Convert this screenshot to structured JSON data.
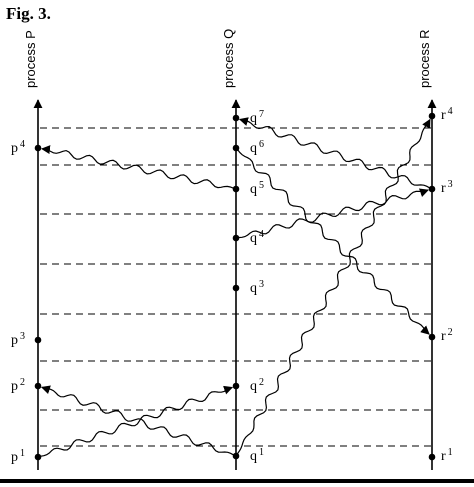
{
  "figure": {
    "caption": "Fig. 3."
  },
  "processes": [
    {
      "id": "P",
      "label": "process",
      "name": "P"
    },
    {
      "id": "Q",
      "label": "process",
      "name": "Q"
    },
    {
      "id": "R",
      "label": "process",
      "name": "R"
    }
  ],
  "events": [
    {
      "id": "p1",
      "letter": "p",
      "index": "1",
      "process": "P"
    },
    {
      "id": "p2",
      "letter": "p",
      "index": "2",
      "process": "P"
    },
    {
      "id": "p3",
      "letter": "p",
      "index": "3",
      "process": "P"
    },
    {
      "id": "p4",
      "letter": "p",
      "index": "4",
      "process": "P"
    },
    {
      "id": "q1",
      "letter": "q",
      "index": "1",
      "process": "Q"
    },
    {
      "id": "q2",
      "letter": "q",
      "index": "2",
      "process": "Q"
    },
    {
      "id": "q3",
      "letter": "q",
      "index": "3",
      "process": "Q"
    },
    {
      "id": "q4",
      "letter": "q",
      "index": "4",
      "process": "Q"
    },
    {
      "id": "q5",
      "letter": "q",
      "index": "5",
      "process": "Q"
    },
    {
      "id": "q6",
      "letter": "q",
      "index": "6",
      "process": "Q"
    },
    {
      "id": "q7",
      "letter": "q",
      "index": "7",
      "process": "Q"
    },
    {
      "id": "r1",
      "letter": "r",
      "index": "1",
      "process": "R"
    },
    {
      "id": "r2",
      "letter": "r",
      "index": "2",
      "process": "R"
    },
    {
      "id": "r3",
      "letter": "r",
      "index": "3",
      "process": "R"
    },
    {
      "id": "r4",
      "letter": "r",
      "index": "4",
      "process": "R"
    }
  ],
  "messages": [
    {
      "from": "p1",
      "to": "q2"
    },
    {
      "from": "q1",
      "to": "p2"
    },
    {
      "from": "q1",
      "to": "r4"
    },
    {
      "from": "q4",
      "to": "r3"
    },
    {
      "from": "q5",
      "to": "p4"
    },
    {
      "from": "q6",
      "to": "r2"
    },
    {
      "from": "r3",
      "to": "q7"
    }
  ],
  "style": {
    "ink": "#000000",
    "background": "#ffffff"
  }
}
